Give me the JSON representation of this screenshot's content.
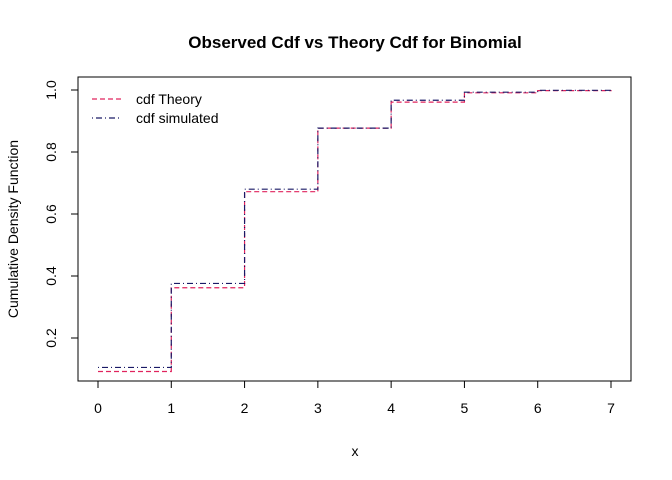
{
  "chart_data": {
    "type": "line",
    "step": true,
    "title": "Observed Cdf vs Theory Cdf for Binomial",
    "xlabel": "x",
    "ylabel": "Cumulative Density Function",
    "xlim": [
      0,
      7
    ],
    "ylim": [
      0.09,
      1.0
    ],
    "x_ticks": [
      0,
      1,
      2,
      3,
      4,
      5,
      6,
      7
    ],
    "y_ticks": [
      0.2,
      0.4,
      0.6,
      0.8,
      1.0
    ],
    "y_tick_labels": [
      "0.2",
      "0.4",
      "0.6",
      "0.8",
      "1.0"
    ],
    "grid": false,
    "legend_position": "top-left",
    "x": [
      0,
      1,
      2,
      3,
      4,
      5,
      6,
      7
    ],
    "series": [
      {
        "name": "cdf Theory",
        "color": "#e0245e",
        "dash": "dashed",
        "values": [
          0.092,
          0.362,
          0.672,
          0.877,
          0.961,
          0.991,
          0.998,
          1.0
        ]
      },
      {
        "name": "cdf simulated",
        "color": "#1a1a66",
        "dash": "dotdash",
        "values": [
          0.105,
          0.376,
          0.68,
          0.877,
          0.967,
          0.993,
          0.999,
          1.0
        ]
      }
    ]
  }
}
